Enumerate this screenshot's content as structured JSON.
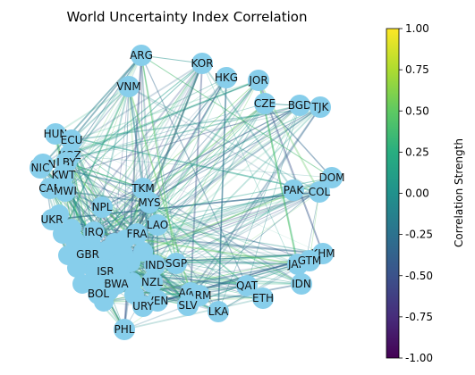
{
  "title": "World Uncertainty Index Correlation",
  "colorbar": {
    "label": "Correlation Strength",
    "colormap": "viridis",
    "range": [
      -1.0,
      1.0
    ],
    "tick_labels": [
      "1.00",
      "0.75",
      "0.50",
      "0.25",
      "0.00",
      "-0.25",
      "-0.50",
      "-0.75",
      "-1.00"
    ],
    "tick_values": [
      1.0,
      0.75,
      0.5,
      0.25,
      0.0,
      -0.25,
      -0.5,
      -0.75,
      -1.0
    ]
  },
  "node_color": "#87ceeb",
  "nodes": [
    "ARG",
    "KOR",
    "HKG",
    "JOR",
    "VNM",
    "CZE",
    "BGD",
    "TJK",
    "HUN",
    "ECU",
    "KGZ",
    "OMN",
    "NIC",
    "LBY",
    "DOM",
    "PAK",
    "COL",
    "CAN",
    "KWT",
    "MWI",
    "TKM",
    "MYS",
    "NPL",
    "LAO",
    "FRA",
    "KHM",
    "JAM",
    "GTM",
    "IDN",
    "QAT",
    "ETH",
    "SGP",
    "IND",
    "AGO",
    "ARM",
    "NZL",
    "VEN",
    "LKA",
    "URY",
    "BOL",
    "PHL",
    "SLV",
    "ISR",
    "UKR",
    "IRQ",
    "GBR",
    "BWA"
  ],
  "legend_note": "Edges coloured by correlation strength"
}
